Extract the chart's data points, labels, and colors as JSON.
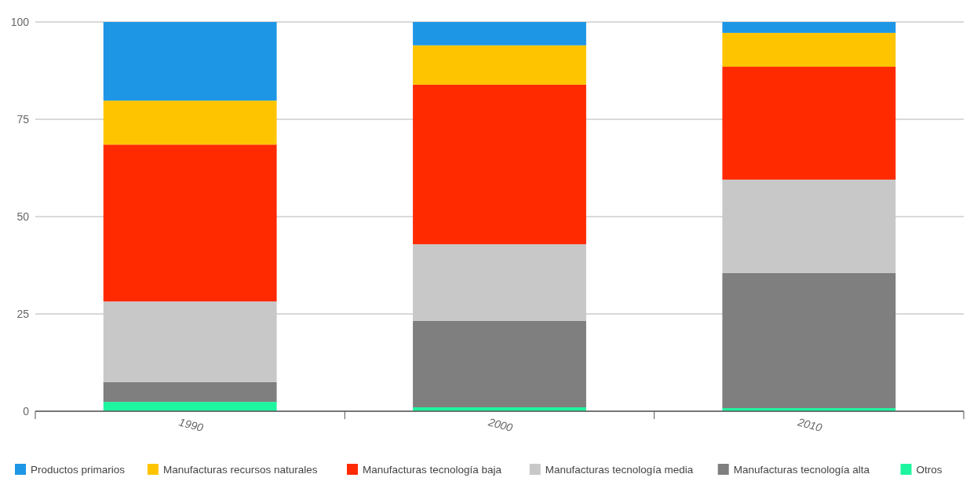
{
  "chart_data": {
    "type": "bar",
    "stacked": true,
    "categories": [
      "1990",
      "2000",
      "2010"
    ],
    "series": [
      {
        "name": "Otros",
        "color": "#1ef5a0",
        "values": [
          2.4,
          1.0,
          0.8
        ]
      },
      {
        "name": "Manufacturas tecnología alta",
        "color": "#7f7f7f",
        "values": [
          5.1,
          22.2,
          34.7
        ]
      },
      {
        "name": "Manufacturas tecnología media",
        "color": "#c8c8c8",
        "values": [
          20.7,
          19.7,
          24.0
        ]
      },
      {
        "name": "Manufacturas tecnología baja",
        "color": "#ff2a00",
        "values": [
          40.3,
          41.0,
          29.0
        ]
      },
      {
        "name": "Manufacturas recursos naturales",
        "color": "#ffc400",
        "values": [
          11.3,
          10.1,
          8.7
        ]
      },
      {
        "name": "Productos primarios",
        "color": "#1e96e6",
        "values": [
          20.2,
          6.0,
          2.8
        ]
      }
    ],
    "ylim": [
      0,
      100
    ],
    "yticks": [
      0,
      25,
      50,
      75,
      100
    ],
    "grid": "y",
    "legend": "bottom"
  }
}
